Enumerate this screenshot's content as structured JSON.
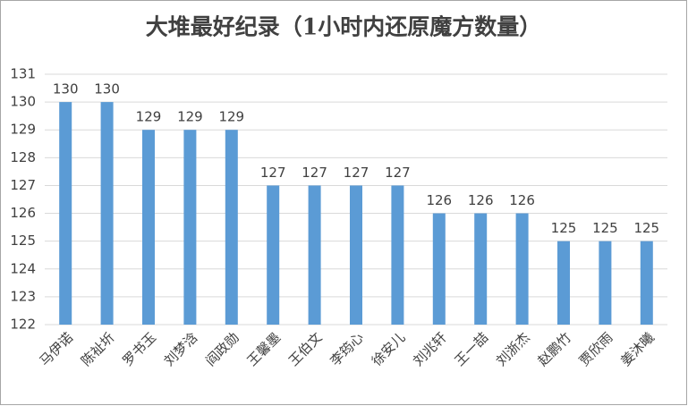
{
  "chart_data": {
    "type": "bar",
    "title": "大堆最好纪录（1小时内还原魔方数量）",
    "categories": [
      "马伊诺",
      "陈祉圻",
      "罗书玉",
      "刘梦浛",
      "阎政勋",
      "王馨墨",
      "王伯文",
      "李筠心",
      "徐安儿",
      "刘兆轩",
      "王一喆",
      "刘浙杰",
      "赵鹏竹",
      "贾欣雨",
      "姜沐曦"
    ],
    "values": [
      130,
      130,
      129,
      129,
      129,
      127,
      127,
      127,
      127,
      126,
      126,
      126,
      125,
      125,
      125
    ],
    "color": "#5b9bd5",
    "ylim": [
      122,
      131
    ],
    "yticks": [
      122,
      123,
      124,
      125,
      126,
      127,
      128,
      129,
      130,
      131
    ],
    "grid": true
  }
}
